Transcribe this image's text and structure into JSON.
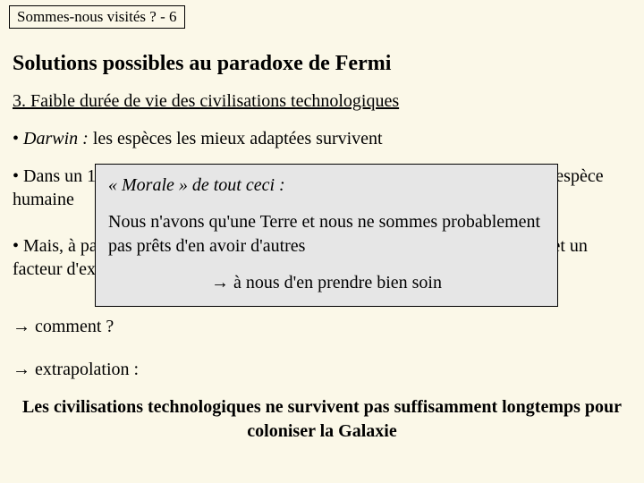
{
  "colors": {
    "background": "#fbf8e8",
    "overlay_bg": "#e6e6e6",
    "text": "#000000",
    "border": "#000000"
  },
  "header": "Sommes-nous visités ? - 6",
  "title": "Solutions possibles au paradoxe de Fermi",
  "subtitle": "3. Faible durée de vie des civilisations technologiques",
  "bullet1_prefix": "• ",
  "bullet1_italic": "Darwin :",
  "bullet1_rest": " les espèces les mieux adaptées survivent",
  "bullet2": "• Dans un 1er temps, l'intelligence a été un facteur favorable à la survie de l'espèce humaine",
  "bullet3": "• Mais, à partir d'un certain stade, l'intelligence devient son propre ennemi, et un facteur d'extinction",
  "arrow1": "→ comment ?",
  "arrow2": "→ extrapolation :",
  "conclusion": "Les civilisations technologiques ne survivent pas suffisamment longtemps pour coloniser la Galaxie",
  "overlay": {
    "title": "« Morale » de tout ceci :",
    "body": "Nous n'avons qu'une Terre et nous ne sommes probablement pas prêts d'en avoir d'autres",
    "final": "→ à nous d'en prendre bien soin"
  }
}
